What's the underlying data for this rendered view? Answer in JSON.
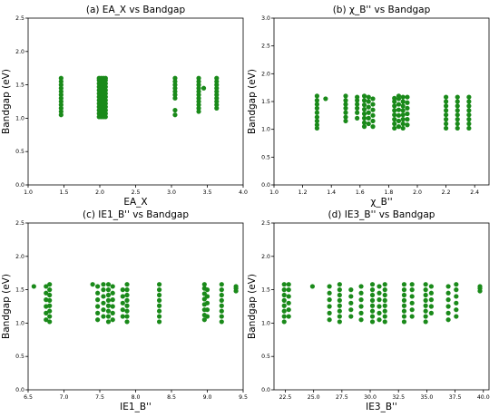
{
  "figure": {
    "point_color": "#1a8a1a"
  },
  "chart_data": [
    {
      "type": "scatter",
      "title": "(a)  EA_X vs Bandgap",
      "xlabel": "EA_X",
      "ylabel": "Bandgap (eV)",
      "xlim": [
        1.0,
        4.0
      ],
      "ylim": [
        0.0,
        2.5
      ],
      "xticks": [
        "1.0",
        "1.5",
        "2.0",
        "2.5",
        "3.0",
        "3.5",
        "4.0"
      ],
      "yticks": [
        "0.0",
        "0.5",
        "1.0",
        "1.5",
        "2.0",
        "2.5"
      ],
      "grid": false,
      "columns": [
        {
          "x": 1.46,
          "y": [
            1.05,
            1.1,
            1.15,
            1.2,
            1.25,
            1.3,
            1.35,
            1.4,
            1.45,
            1.5,
            1.55,
            1.6
          ]
        },
        {
          "x": 1.99,
          "y": [
            1.02,
            1.07,
            1.12,
            1.17,
            1.22,
            1.27,
            1.32,
            1.37,
            1.42,
            1.47,
            1.52,
            1.57,
            1.6
          ]
        },
        {
          "x": 2.02,
          "y": [
            1.02,
            1.07,
            1.12,
            1.17,
            1.22,
            1.27,
            1.32,
            1.37,
            1.42,
            1.47,
            1.52,
            1.57,
            1.6
          ]
        },
        {
          "x": 2.05,
          "y": [
            1.02,
            1.07,
            1.12,
            1.17,
            1.22,
            1.27,
            1.32,
            1.37,
            1.42,
            1.47,
            1.52,
            1.57,
            1.6
          ]
        },
        {
          "x": 2.08,
          "y": [
            1.02,
            1.07,
            1.12,
            1.17,
            1.22,
            1.27,
            1.32,
            1.37,
            1.42,
            1.47,
            1.52,
            1.57,
            1.6
          ]
        },
        {
          "x": 3.05,
          "y": [
            1.05,
            1.12,
            1.3,
            1.35,
            1.4,
            1.45,
            1.5,
            1.55,
            1.6
          ]
        },
        {
          "x": 3.38,
          "y": [
            1.1,
            1.15,
            1.2,
            1.25,
            1.3,
            1.35,
            1.4,
            1.45,
            1.5,
            1.55,
            1.6
          ]
        },
        {
          "x": 3.45,
          "y": [
            1.45
          ]
        },
        {
          "x": 3.63,
          "y": [
            1.15,
            1.2,
            1.25,
            1.3,
            1.35,
            1.4,
            1.45,
            1.5,
            1.55,
            1.6
          ]
        }
      ]
    },
    {
      "type": "scatter",
      "title": "(b)  χ_B'' vs Bandgap",
      "xlabel": "χ_B''",
      "ylabel": "Bandgap (eV)",
      "xlim": [
        1.0,
        2.5
      ],
      "ylim": [
        0.0,
        3.0
      ],
      "xticks": [
        "1.0",
        "1.2",
        "1.4",
        "1.6",
        "1.8",
        "2.0",
        "2.2",
        "2.4"
      ],
      "yticks": [
        "0.0",
        "0.5",
        "1.0",
        "1.5",
        "2.0",
        "2.5",
        "3.0"
      ],
      "grid": false,
      "columns": [
        {
          "x": 1.3,
          "y": [
            1.02,
            1.08,
            1.15,
            1.22,
            1.3,
            1.38,
            1.45,
            1.52,
            1.6
          ]
        },
        {
          "x": 1.36,
          "y": [
            1.55
          ]
        },
        {
          "x": 1.5,
          "y": [
            1.15,
            1.22,
            1.3,
            1.38,
            1.45,
            1.52,
            1.6
          ]
        },
        {
          "x": 1.58,
          "y": [
            1.2,
            1.3,
            1.38,
            1.45,
            1.52,
            1.58
          ]
        },
        {
          "x": 1.63,
          "y": [
            1.05,
            1.12,
            1.2,
            1.28,
            1.36,
            1.44,
            1.52,
            1.6
          ]
        },
        {
          "x": 1.66,
          "y": [
            1.1,
            1.2,
            1.3,
            1.4,
            1.5,
            1.58
          ]
        },
        {
          "x": 1.69,
          "y": [
            1.05,
            1.15,
            1.25,
            1.35,
            1.45,
            1.55
          ]
        },
        {
          "x": 1.84,
          "y": [
            1.02,
            1.1,
            1.18,
            1.26,
            1.34,
            1.42,
            1.5,
            1.56
          ]
        },
        {
          "x": 1.87,
          "y": [
            1.05,
            1.15,
            1.25,
            1.35,
            1.45,
            1.55,
            1.6
          ]
        },
        {
          "x": 1.9,
          "y": [
            1.02,
            1.1,
            1.18,
            1.26,
            1.34,
            1.42,
            1.5,
            1.58
          ]
        },
        {
          "x": 1.93,
          "y": [
            1.08,
            1.18,
            1.28,
            1.38,
            1.48,
            1.58
          ]
        },
        {
          "x": 2.2,
          "y": [
            1.02,
            1.1,
            1.18,
            1.26,
            1.34,
            1.42,
            1.5,
            1.58
          ]
        },
        {
          "x": 2.28,
          "y": [
            1.02,
            1.1,
            1.18,
            1.26,
            1.34,
            1.42,
            1.5,
            1.58
          ]
        },
        {
          "x": 2.36,
          "y": [
            1.02,
            1.1,
            1.18,
            1.26,
            1.34,
            1.42,
            1.5,
            1.58
          ]
        }
      ]
    },
    {
      "type": "scatter",
      "title": "(c)  IE1_B'' vs Bandgap",
      "xlabel": "IE1_B''",
      "ylabel": "Bandgap (eV)",
      "xlim": [
        6.5,
        9.5
      ],
      "ylim": [
        0.0,
        2.5
      ],
      "xticks": [
        "6.5",
        "7.0",
        "7.5",
        "8.0",
        "8.5",
        "9.0",
        "9.5"
      ],
      "yticks": [
        "0.0",
        "0.5",
        "1.0",
        "1.5",
        "2.0",
        "2.5"
      ],
      "grid": false,
      "columns": [
        {
          "x": 6.58,
          "y": [
            1.55
          ]
        },
        {
          "x": 6.75,
          "y": [
            1.05,
            1.15,
            1.25,
            1.35,
            1.45,
            1.55
          ]
        },
        {
          "x": 6.8,
          "y": [
            1.02,
            1.1,
            1.18,
            1.26,
            1.34,
            1.42,
            1.5,
            1.58
          ]
        },
        {
          "x": 7.4,
          "y": [
            1.58
          ]
        },
        {
          "x": 7.47,
          "y": [
            1.05,
            1.15,
            1.25,
            1.35,
            1.45,
            1.55
          ]
        },
        {
          "x": 7.55,
          "y": [
            1.1,
            1.2,
            1.3,
            1.4,
            1.5,
            1.58
          ]
        },
        {
          "x": 7.62,
          "y": [
            1.02,
            1.1,
            1.18,
            1.26,
            1.34,
            1.42,
            1.5,
            1.58
          ]
        },
        {
          "x": 7.68,
          "y": [
            1.05,
            1.15,
            1.25,
            1.35,
            1.45,
            1.55
          ]
        },
        {
          "x": 7.82,
          "y": [
            1.1,
            1.2,
            1.3,
            1.4,
            1.5
          ]
        },
        {
          "x": 7.88,
          "y": [
            1.02,
            1.1,
            1.18,
            1.26,
            1.34,
            1.42,
            1.5,
            1.58
          ]
        },
        {
          "x": 8.33,
          "y": [
            1.02,
            1.1,
            1.18,
            1.26,
            1.34,
            1.42,
            1.5,
            1.58
          ]
        },
        {
          "x": 8.96,
          "y": [
            1.05,
            1.12,
            1.2,
            1.28,
            1.36,
            1.44,
            1.52,
            1.58
          ]
        },
        {
          "x": 9.0,
          "y": [
            1.1,
            1.2,
            1.3,
            1.4,
            1.5
          ]
        },
        {
          "x": 9.2,
          "y": [
            1.02,
            1.1,
            1.18,
            1.26,
            1.34,
            1.42,
            1.5,
            1.58
          ]
        },
        {
          "x": 9.4,
          "y": [
            1.48,
            1.52,
            1.55
          ]
        }
      ]
    },
    {
      "type": "scatter",
      "title": "(d)  IE3_B'' vs Bandgap",
      "xlabel": "IE3_B''",
      "ylabel": "Bandgap (eV)",
      "xlim": [
        21.5,
        40.5
      ],
      "ylim": [
        0.0,
        2.5
      ],
      "xticks": [
        "22.5",
        "25.0",
        "27.5",
        "30.0",
        "32.5",
        "35.0",
        "37.5",
        "40.0"
      ],
      "xtick_values": [
        22.5,
        25.0,
        27.5,
        30.0,
        32.5,
        35.0,
        37.5,
        40.0
      ],
      "yticks": [
        "0.0",
        "0.5",
        "1.0",
        "1.5",
        "2.0",
        "2.5"
      ],
      "grid": false,
      "columns": [
        {
          "x": 22.4,
          "y": [
            1.02,
            1.1,
            1.18,
            1.26,
            1.34,
            1.42,
            1.5,
            1.58
          ]
        },
        {
          "x": 22.8,
          "y": [
            1.1,
            1.2,
            1.3,
            1.4,
            1.5,
            1.58
          ]
        },
        {
          "x": 24.9,
          "y": [
            1.55
          ]
        },
        {
          "x": 26.4,
          "y": [
            1.05,
            1.15,
            1.25,
            1.35,
            1.45,
            1.55
          ]
        },
        {
          "x": 27.3,
          "y": [
            1.02,
            1.1,
            1.18,
            1.26,
            1.34,
            1.42,
            1.5,
            1.58
          ]
        },
        {
          "x": 28.3,
          "y": [
            1.1,
            1.2,
            1.3,
            1.4,
            1.5
          ]
        },
        {
          "x": 29.2,
          "y": [
            1.05,
            1.15,
            1.25,
            1.35,
            1.45,
            1.55
          ]
        },
        {
          "x": 30.2,
          "y": [
            1.02,
            1.1,
            1.18,
            1.26,
            1.34,
            1.42,
            1.5,
            1.58
          ]
        },
        {
          "x": 30.8,
          "y": [
            1.05,
            1.15,
            1.25,
            1.35,
            1.45,
            1.55
          ]
        },
        {
          "x": 31.3,
          "y": [
            1.02,
            1.1,
            1.18,
            1.26,
            1.34,
            1.42,
            1.5,
            1.58
          ]
        },
        {
          "x": 33.0,
          "y": [
            1.02,
            1.1,
            1.18,
            1.26,
            1.34,
            1.42,
            1.5,
            1.58
          ]
        },
        {
          "x": 33.7,
          "y": [
            1.1,
            1.2,
            1.3,
            1.4,
            1.5,
            1.58
          ]
        },
        {
          "x": 34.9,
          "y": [
            1.02,
            1.1,
            1.18,
            1.26,
            1.34,
            1.42,
            1.5,
            1.58
          ]
        },
        {
          "x": 35.4,
          "y": [
            1.15,
            1.25,
            1.35,
            1.45,
            1.55
          ]
        },
        {
          "x": 36.9,
          "y": [
            1.05,
            1.15,
            1.25,
            1.35,
            1.45,
            1.55
          ]
        },
        {
          "x": 37.6,
          "y": [
            1.1,
            1.2,
            1.3,
            1.4,
            1.5,
            1.58
          ]
        },
        {
          "x": 39.7,
          "y": [
            1.48,
            1.52,
            1.55
          ]
        }
      ]
    }
  ]
}
